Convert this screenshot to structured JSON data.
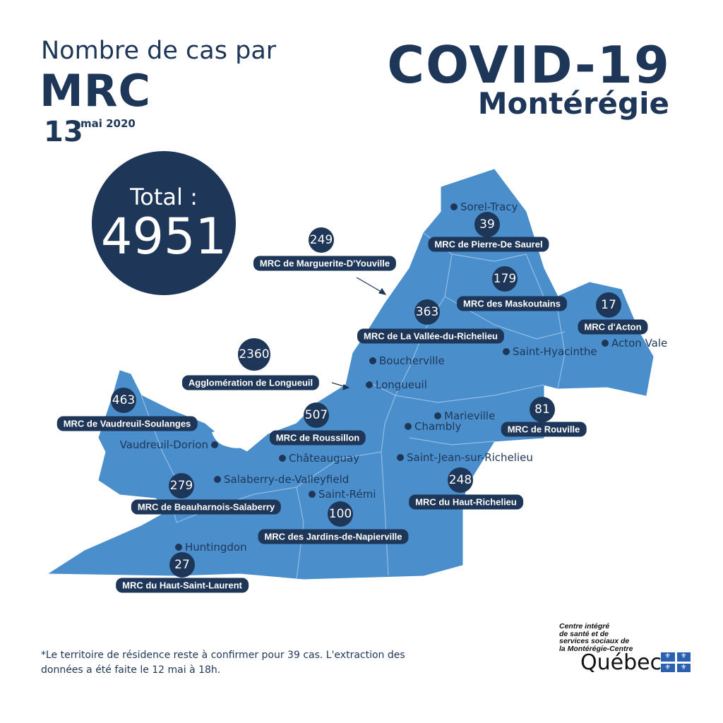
{
  "header": {
    "line1": "Nombre de cas par",
    "line2": "MRC",
    "day": "13",
    "month_year": "mai 2020"
  },
  "brand": {
    "title": "COVID-19",
    "region": "Montérégie",
    "virus_icon": "coronavirus-icon"
  },
  "total": {
    "label": "Total :",
    "value": "4951"
  },
  "colors": {
    "navy": "#1e3658",
    "map_fill": "#4a8fcb",
    "border": "#8fbde6"
  },
  "mrcs": [
    {
      "name": "MRC de Pierre-De Saurel",
      "cases": "39"
    },
    {
      "name": "MRC de Marguerite-D'Youville",
      "cases": "249"
    },
    {
      "name": "MRC des Maskoutains",
      "cases": "179"
    },
    {
      "name": "MRC d'Acton",
      "cases": "17"
    },
    {
      "name": "MRC de La Vallée-du-Richelieu",
      "cases": "363"
    },
    {
      "name": "Agglomération de Longueuil",
      "cases": "2360"
    },
    {
      "name": "MRC de Vaudreuil-Soulanges",
      "cases": "463"
    },
    {
      "name": "MRC de Roussillon",
      "cases": "507"
    },
    {
      "name": "MRC de Rouville",
      "cases": "81"
    },
    {
      "name": "MRC de Beauharnois-Salaberry",
      "cases": "279"
    },
    {
      "name": "MRC du Haut-Richelieu",
      "cases": "248"
    },
    {
      "name": "MRC des Jardins-de-Napierville",
      "cases": "100"
    },
    {
      "name": "MRC du Haut-Saint-Laurent",
      "cases": "27"
    }
  ],
  "cities": [
    "Sorel-Tracy",
    "Saint-Hyacinthe",
    "Acton Vale",
    "Boucherville",
    "Longueuil",
    "Marieville",
    "Chambly",
    "Vaudreuil-Dorion",
    "Châteauguay",
    "Saint-Jean-sur-Richelieu",
    "Salaberry-de-Valleyfield",
    "Saint-Rémi",
    "Huntingdon"
  ],
  "footnote": {
    "line1": "*Le territoire de résidence reste à confirmer pour 39 cas.  L'extraction des",
    "line2": "données a été faite le 12 mai à 18h."
  },
  "logo": {
    "org": [
      "Centre intégré",
      "de santé et de",
      "services sociaux de",
      "la Montérégie-Centre"
    ],
    "gov": "Québec"
  }
}
